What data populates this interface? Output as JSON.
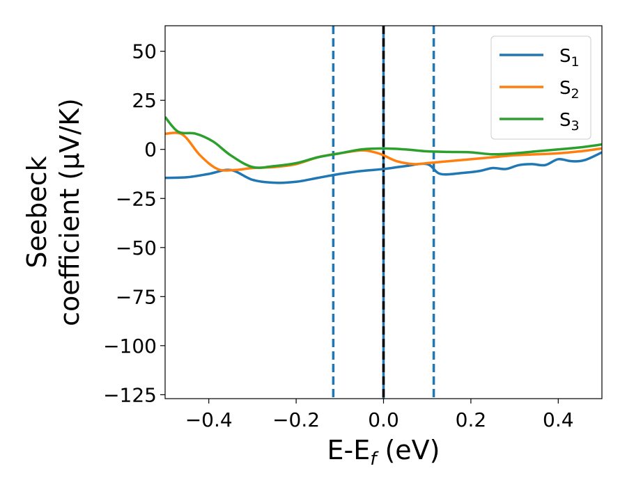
{
  "chart_data": {
    "type": "line",
    "xlabel": "E-E",
    "xlabel_sub": "f",
    "xlabel_unit": " (eV)",
    "ylabel_line1": "Seebeck",
    "ylabel_line2": "coefficient  (μV/K)",
    "xlim": [
      -0.5,
      0.5
    ],
    "ylim": [
      -127,
      63
    ],
    "xticks": [
      -0.4,
      -0.2,
      0.0,
      0.2,
      0.4
    ],
    "xtick_labels": [
      "−0.4",
      "−0.2",
      "0.0",
      "0.2",
      "0.4"
    ],
    "yticks": [
      50,
      25,
      0,
      -25,
      -50,
      -75,
      -100,
      -125
    ],
    "ytick_labels": [
      "50",
      "25",
      "0",
      "−25",
      "−50",
      "−75",
      "−100",
      "−125"
    ],
    "grid": false,
    "legend_position": "top-right",
    "vlines": [
      {
        "x": -0.115,
        "color": "#1f77b4",
        "style": "dashed"
      },
      {
        "x": 0.0,
        "color": "#1f77b4",
        "style": "solid"
      },
      {
        "x": 0.0,
        "color": "#000000",
        "style": "dashed"
      },
      {
        "x": 0.115,
        "color": "#1f77b4",
        "style": "dashed"
      }
    ],
    "series": [
      {
        "name": "S",
        "sub": "1",
        "color": "#1f77b4",
        "x": [
          -0.5,
          -0.45,
          -0.4,
          -0.35,
          -0.3,
          -0.25,
          -0.2,
          -0.15,
          -0.1,
          -0.05,
          0.0,
          0.05,
          0.1,
          0.13,
          0.18,
          0.22,
          0.25,
          0.28,
          0.31,
          0.34,
          0.37,
          0.4,
          0.43,
          0.46,
          0.5
        ],
        "y": [
          -14.5,
          -14.2,
          -12.5,
          -10.5,
          -15.5,
          -17,
          -16.5,
          -14.5,
          -12.5,
          -11,
          -10,
          -8.5,
          -7.5,
          -12.5,
          -12,
          -11,
          -9.5,
          -10,
          -8,
          -7.5,
          -8,
          -5,
          -6,
          -5.5,
          -1.5
        ]
      },
      {
        "name": "S",
        "sub": "2",
        "color": "#ff7f0e",
        "x": [
          -0.5,
          -0.46,
          -0.42,
          -0.38,
          -0.34,
          -0.3,
          -0.25,
          -0.2,
          -0.15,
          -0.1,
          -0.05,
          -0.02,
          0.0,
          0.03,
          0.07,
          0.1,
          0.15,
          0.2,
          0.25,
          0.3,
          0.35,
          0.4,
          0.45,
          0.5
        ],
        "y": [
          8,
          7.5,
          -3,
          -10,
          -10.5,
          -9.5,
          -9,
          -7.5,
          -4,
          -2,
          -0.5,
          -1.5,
          -3,
          -6,
          -7.5,
          -7,
          -6,
          -5,
          -4,
          -3,
          -2.5,
          -2,
          -1,
          0.5
        ]
      },
      {
        "name": "S",
        "sub": "3",
        "color": "#2ca02c",
        "x": [
          -0.5,
          -0.47,
          -0.43,
          -0.39,
          -0.35,
          -0.3,
          -0.25,
          -0.2,
          -0.15,
          -0.1,
          -0.05,
          0.0,
          0.05,
          0.1,
          0.15,
          0.2,
          0.25,
          0.3,
          0.35,
          0.4,
          0.45,
          0.5
        ],
        "y": [
          16.5,
          9,
          8,
          4,
          -3,
          -9,
          -8.5,
          -7,
          -4,
          -2,
          0,
          0.5,
          0,
          -1,
          -1.3,
          -1.5,
          -2.5,
          -2,
          -1,
          0,
          1,
          2.5
        ]
      }
    ]
  }
}
